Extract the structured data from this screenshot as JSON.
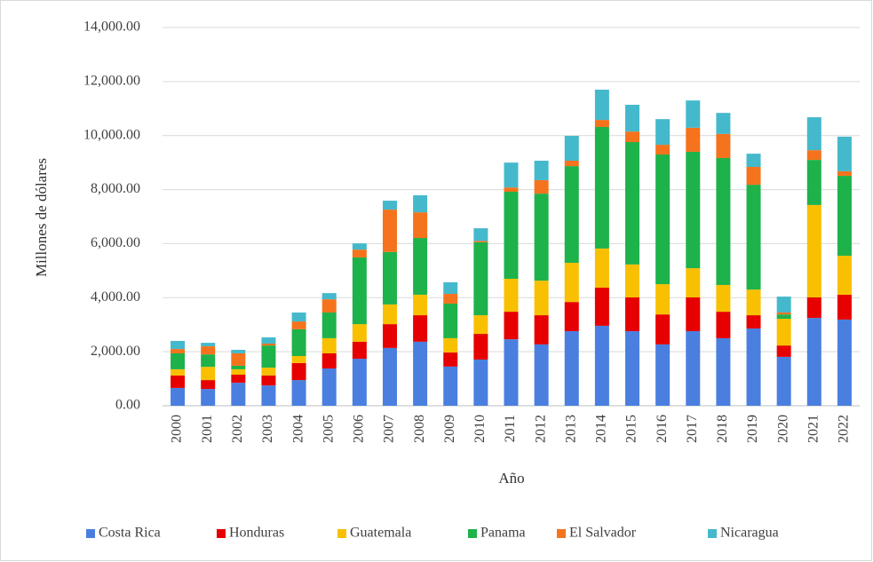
{
  "chart_data": {
    "type": "stacked_bar",
    "x_label": "Año",
    "y_label": "Millones de dólares",
    "categories": [
      "2000",
      "2001",
      "2002",
      "2003",
      "2004",
      "2005",
      "2006",
      "2007",
      "2008",
      "2009",
      "2010",
      "2011",
      "2012",
      "2013",
      "2014",
      "2015",
      "2016",
      "2017",
      "2018",
      "2019",
      "2020",
      "2021",
      "2022"
    ],
    "series": [
      {
        "name": "Costa Rica",
        "color": "#4a7fe0",
        "values": [
          660,
          620,
          850,
          750,
          950,
          1380,
          1740,
          2140,
          2370,
          1450,
          1710,
          2460,
          2270,
          2760,
          2960,
          2760,
          2270,
          2760,
          2500,
          2860,
          1810,
          3250,
          3190
        ]
      },
      {
        "name": "Honduras",
        "color": "#e60000",
        "values": [
          460,
          330,
          300,
          370,
          630,
          560,
          630,
          880,
          980,
          520,
          950,
          1020,
          1080,
          1080,
          1410,
          1250,
          1110,
          1250,
          980,
          490,
          420,
          760,
          920
        ]
      },
      {
        "name": "Guatemala",
        "color": "#f8c000",
        "values": [
          230,
          490,
          200,
          290,
          260,
          560,
          650,
          730,
          760,
          530,
          690,
          1220,
          1280,
          1450,
          1450,
          1220,
          1120,
          1080,
          990,
          950,
          990,
          3420,
          1440
        ]
      },
      {
        "name": "Panama",
        "color": "#1eb24b",
        "values": [
          590,
          460,
          130,
          820,
          990,
          950,
          2470,
          1940,
          2100,
          1280,
          2700,
          3220,
          3220,
          3580,
          4500,
          4530,
          4800,
          4310,
          4700,
          3880,
          160,
          1670,
          2960
        ]
      },
      {
        "name": "El Salvador",
        "color": "#f5731c",
        "values": [
          160,
          300,
          460,
          70,
          290,
          490,
          290,
          1570,
          950,
          360,
          50,
          160,
          500,
          200,
          260,
          390,
          360,
          890,
          890,
          660,
          70,
          360,
          170
        ]
      },
      {
        "name": "Nicaragua",
        "color": "#45b9cc",
        "values": [
          300,
          130,
          130,
          230,
          330,
          230,
          230,
          330,
          630,
          430,
          470,
          920,
          720,
          920,
          1120,
          990,
          950,
          1010,
          780,
          490,
          590,
          1220,
          1280
        ]
      }
    ],
    "ylim": [
      0,
      14000
    ],
    "yticks": [
      {
        "value": 0,
        "label": "0.00"
      },
      {
        "value": 2000,
        "label": "2,000.00"
      },
      {
        "value": 4000,
        "label": "4,000.00"
      },
      {
        "value": 6000,
        "label": "6,000.00"
      },
      {
        "value": 8000,
        "label": "8,000.00"
      },
      {
        "value": 10000,
        "label": "10,000.00"
      },
      {
        "value": 12000,
        "label": "12,000.00"
      },
      {
        "value": 14000,
        "label": "14,000.00"
      }
    ],
    "grid": true,
    "legend": "bottom"
  }
}
